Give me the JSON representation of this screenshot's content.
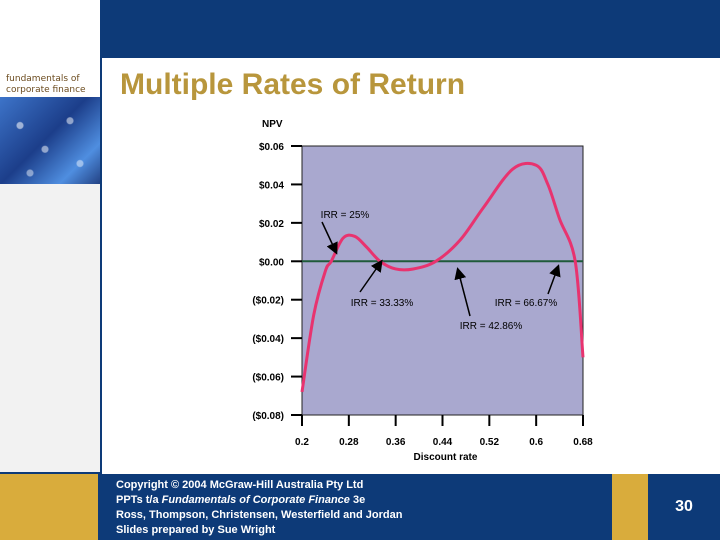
{
  "slide": {
    "title": "Multiple Rates of Return",
    "page_number": "30"
  },
  "book": {
    "title_line1": "fundamentals of",
    "title_line2": "corporate finance",
    "edition": "3e"
  },
  "footer": {
    "line1_prefix": "Copyright ",
    "line1_symbol": "©",
    "line1_suffix": " 2004 McGraw-Hill Australia Pty Ltd",
    "line2_prefix": "PPTs t/a ",
    "line2_italic": "Fundamentals of Corporate Finance",
    "line2_suffix": " 3e",
    "line3": "Ross, Thompson, Christensen, Westerfield and Jordan",
    "line4": "Slides prepared by Sue Wright"
  },
  "colors": {
    "title": "#b8963c",
    "band": "#0d3a78",
    "gold": "#d9ac3c",
    "plot_bg": "#a9a8cf",
    "curve": "#e8336f",
    "zero_line": "#1f5a3a"
  },
  "chart_data": {
    "type": "line",
    "title": "",
    "ylabel": "NPV",
    "xlabel": "Discount rate",
    "xlim": [
      0.2,
      0.68
    ],
    "ylim": [
      -0.08,
      0.06
    ],
    "x_ticks": [
      0.2,
      0.28,
      0.36,
      0.44,
      0.52,
      0.6,
      0.68
    ],
    "x_tick_labels": [
      "0.2",
      "0.28",
      "0.36",
      "0.44",
      "0.52",
      "0.6",
      "0.68"
    ],
    "y_ticks": [
      0.06,
      0.04,
      0.02,
      0.0,
      -0.02,
      -0.04,
      -0.06,
      -0.08
    ],
    "y_tick_labels": [
      "$0.06",
      "$0.04",
      "$0.02",
      "$0.00",
      "($0.02)",
      "($0.04)",
      "($0.06)",
      "($0.08)"
    ],
    "grid": false,
    "series": [
      {
        "x": [
          0.2,
          0.22,
          0.24,
          0.25,
          0.27,
          0.29,
          0.31,
          0.3333,
          0.36,
          0.39,
          0.4286,
          0.47,
          0.51,
          0.56,
          0.6,
          0.62,
          0.64,
          0.6667,
          0.68
        ],
        "y": [
          -0.068,
          -0.028,
          -0.005,
          0.0,
          0.012,
          0.013,
          0.0075,
          0.0,
          -0.004,
          -0.004,
          0.0,
          0.011,
          0.028,
          0.048,
          0.05,
          0.04,
          0.022,
          0.0,
          -0.05
        ]
      }
    ],
    "zero_line": 0.0,
    "annotations": [
      {
        "text": "IRR = 25%",
        "x": 0.25,
        "y": 0.0
      },
      {
        "text": "IRR = 33.33%",
        "x": 0.3333,
        "y": 0.0
      },
      {
        "text": "IRR = 42.86%",
        "x": 0.4286,
        "y": 0.0
      },
      {
        "text": "IRR = 66.67%",
        "x": 0.6667,
        "y": 0.0
      }
    ]
  }
}
